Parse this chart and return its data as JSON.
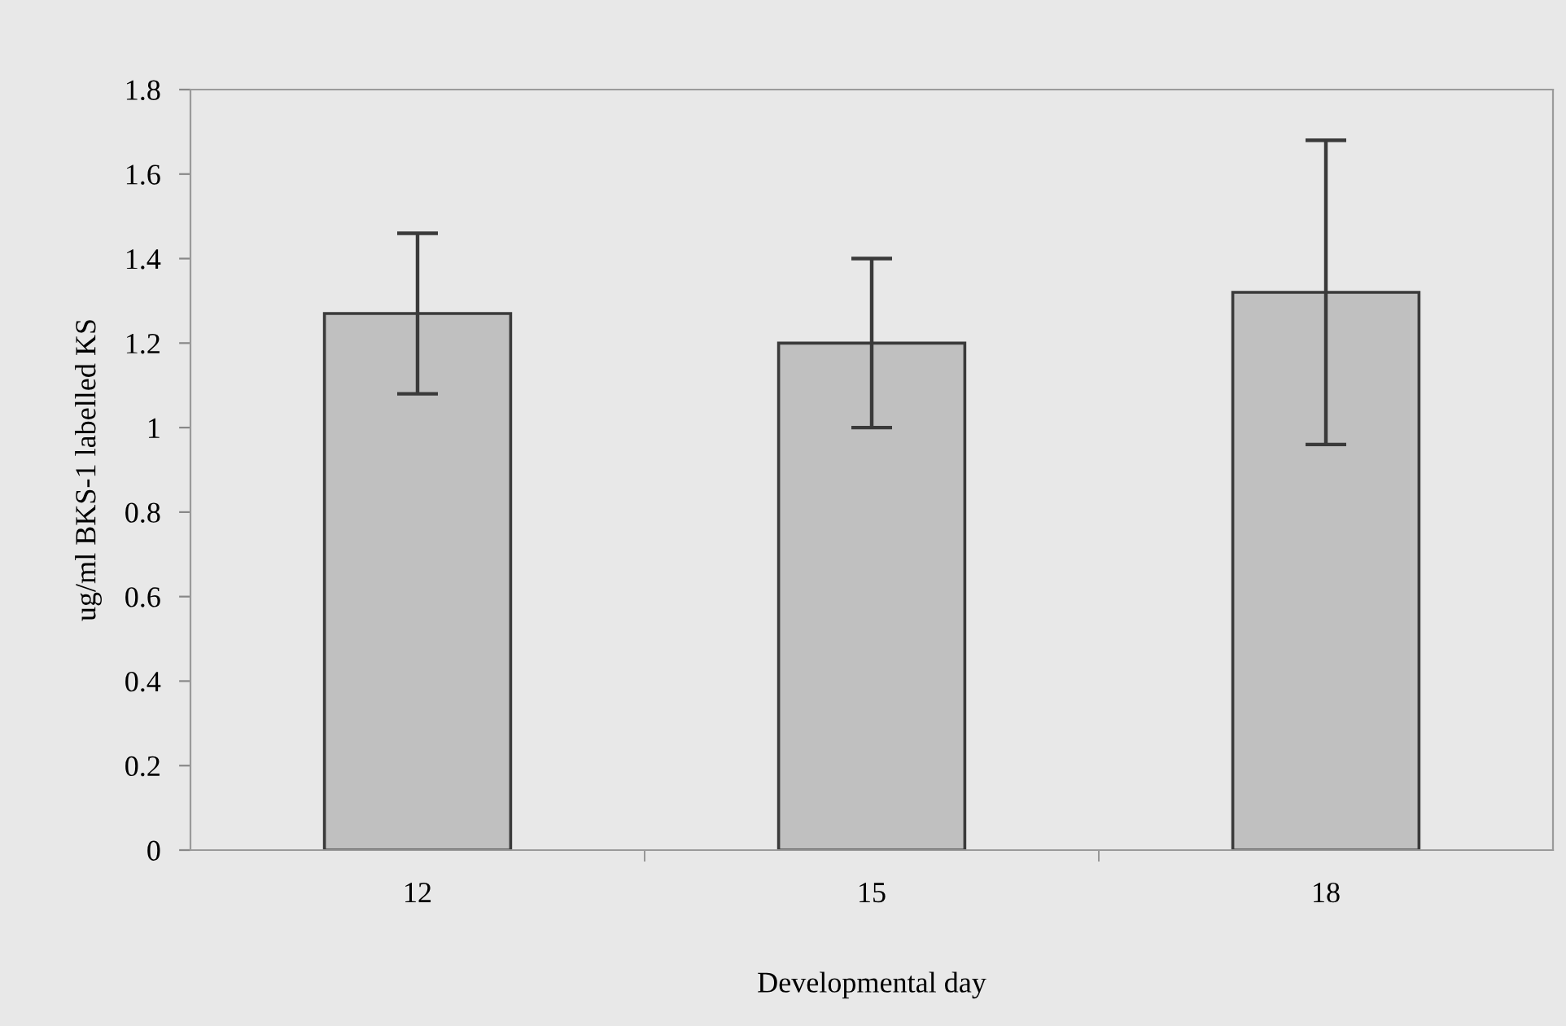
{
  "chart_data": {
    "type": "bar",
    "xlabel": "Developmental day",
    "ylabel": "ug/ml BKS-1 labelled KS",
    "categories": [
      "12",
      "15",
      "18"
    ],
    "series": [
      {
        "color": "#c0c0c0",
        "values": [
          1.27,
          1.2,
          1.32
        ],
        "errors": [
          0.19,
          0.2,
          0.36
        ]
      }
    ],
    "ylim": [
      0,
      1.8
    ],
    "yticks": [
      0,
      0.2,
      0.4,
      0.6,
      0.8,
      1,
      1.2,
      1.4,
      1.6,
      1.8
    ],
    "grid": false,
    "legend": false
  }
}
